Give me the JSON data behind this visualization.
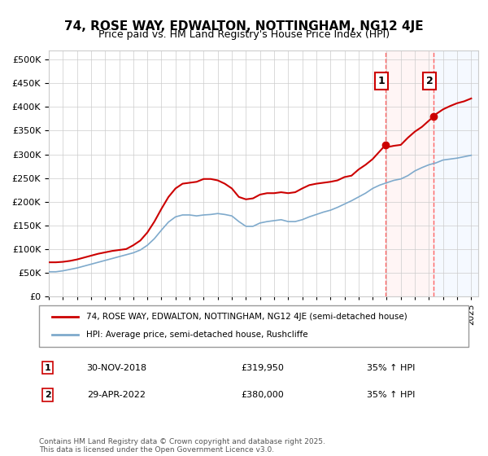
{
  "title": "74, ROSE WAY, EDWALTON, NOTTINGHAM, NG12 4JE",
  "subtitle": "Price paid vs. HM Land Registry's House Price Index (HPI)",
  "legend_line1": "74, ROSE WAY, EDWALTON, NOTTINGHAM, NG12 4JE (semi-detached house)",
  "legend_line2": "HPI: Average price, semi-detached house, Rushcliffe",
  "footnote": "Contains HM Land Registry data © Crown copyright and database right 2025.\nThis data is licensed under the Open Government Licence v3.0.",
  "marker1_date": "30-NOV-2018",
  "marker1_price": "£319,950",
  "marker1_hpi": "35% ↑ HPI",
  "marker2_date": "29-APR-2022",
  "marker2_price": "£380,000",
  "marker2_hpi": "35% ↑ HPI",
  "line_color_red": "#cc0000",
  "line_color_blue": "#7faacc",
  "marker_fill_red": "#cc0000",
  "vline_color": "#ff6666",
  "highlight_color": "#ffe8e8",
  "highlight_color2": "#e8f0ff",
  "ylim": [
    0,
    520000
  ],
  "yticks": [
    0,
    50000,
    100000,
    150000,
    200000,
    250000,
    300000,
    350000,
    400000,
    450000,
    500000
  ],
  "xlim_start": 1995.0,
  "xlim_end": 2025.5,
  "marker1_x": 2018.917,
  "marker2_x": 2022.33,
  "marker1_y": 319950,
  "marker2_y": 380000,
  "red_x": [
    1995.0,
    1995.5,
    1996.0,
    1996.5,
    1997.0,
    1997.5,
    1998.0,
    1998.5,
    1999.0,
    1999.5,
    2000.0,
    2000.5,
    2001.0,
    2001.5,
    2002.0,
    2002.5,
    2003.0,
    2003.5,
    2004.0,
    2004.5,
    2005.0,
    2005.5,
    2006.0,
    2006.5,
    2007.0,
    2007.5,
    2008.0,
    2008.5,
    2009.0,
    2009.5,
    2010.0,
    2010.5,
    2011.0,
    2011.5,
    2012.0,
    2012.5,
    2013.0,
    2013.5,
    2014.0,
    2014.5,
    2015.0,
    2015.5,
    2016.0,
    2016.5,
    2017.0,
    2017.5,
    2018.0,
    2018.917,
    2019.0,
    2019.5,
    2020.0,
    2020.5,
    2021.0,
    2021.5,
    2022.33,
    2022.5,
    2023.0,
    2023.5,
    2024.0,
    2024.5,
    2025.0
  ],
  "red_y": [
    72000,
    72000,
    73000,
    75000,
    78000,
    82000,
    86000,
    90000,
    93000,
    96000,
    98000,
    100000,
    108000,
    118000,
    135000,
    158000,
    185000,
    210000,
    228000,
    238000,
    240000,
    242000,
    248000,
    248000,
    245000,
    238000,
    228000,
    210000,
    205000,
    207000,
    215000,
    218000,
    218000,
    220000,
    218000,
    220000,
    228000,
    235000,
    238000,
    240000,
    242000,
    245000,
    252000,
    255000,
    268000,
    278000,
    290000,
    319950,
    315000,
    318000,
    320000,
    335000,
    348000,
    358000,
    380000,
    385000,
    395000,
    402000,
    408000,
    412000,
    418000
  ],
  "blue_x": [
    1995.0,
    1995.5,
    1996.0,
    1996.5,
    1997.0,
    1997.5,
    1998.0,
    1998.5,
    1999.0,
    1999.5,
    2000.0,
    2000.5,
    2001.0,
    2001.5,
    2002.0,
    2002.5,
    2003.0,
    2003.5,
    2004.0,
    2004.5,
    2005.0,
    2005.5,
    2006.0,
    2006.5,
    2007.0,
    2007.5,
    2008.0,
    2008.5,
    2009.0,
    2009.5,
    2010.0,
    2010.5,
    2011.0,
    2011.5,
    2012.0,
    2012.5,
    2013.0,
    2013.5,
    2014.0,
    2014.5,
    2015.0,
    2015.5,
    2016.0,
    2016.5,
    2017.0,
    2017.5,
    2018.0,
    2018.5,
    2019.0,
    2019.5,
    2020.0,
    2020.5,
    2021.0,
    2021.5,
    2022.0,
    2022.5,
    2023.0,
    2023.5,
    2024.0,
    2024.5,
    2025.0
  ],
  "blue_y": [
    52000,
    52000,
    54000,
    57000,
    60000,
    64000,
    68000,
    72000,
    76000,
    80000,
    84000,
    88000,
    92000,
    98000,
    108000,
    122000,
    140000,
    157000,
    168000,
    172000,
    172000,
    170000,
    172000,
    173000,
    175000,
    173000,
    170000,
    158000,
    148000,
    148000,
    155000,
    158000,
    160000,
    162000,
    158000,
    158000,
    162000,
    168000,
    173000,
    178000,
    182000,
    188000,
    195000,
    202000,
    210000,
    218000,
    228000,
    235000,
    240000,
    245000,
    248000,
    255000,
    265000,
    272000,
    278000,
    282000,
    288000,
    290000,
    292000,
    295000,
    298000
  ]
}
